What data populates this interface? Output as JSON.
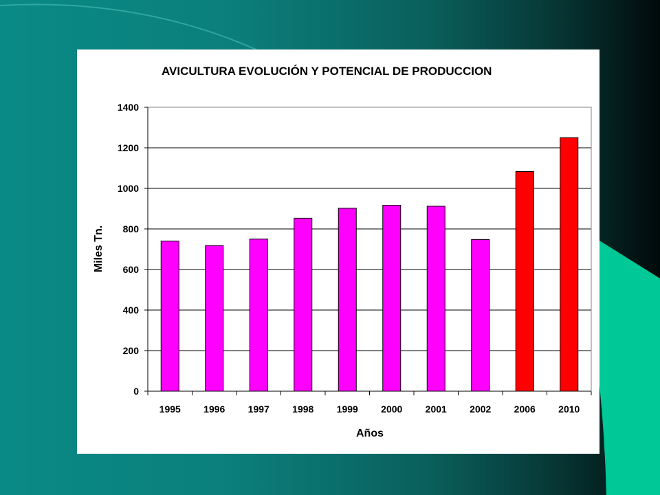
{
  "colors": {
    "bar_actual": "#ff00ff",
    "bar_projected": "#ff0000",
    "accent_shape": "#00c896",
    "background_dark": "#010a0a",
    "background_teal": "#0a8a86"
  },
  "chart_data": {
    "type": "bar",
    "title": "AVICULTURA EVOLUCIÓN Y POTENCIAL DE PRODUCCION",
    "xlabel": "Años",
    "ylabel": "Miles Tn.",
    "categories": [
      "1995",
      "1996",
      "1997",
      "1998",
      "1999",
      "2000",
      "2001",
      "2002",
      "2006",
      "2010"
    ],
    "values": [
      740,
      718,
      750,
      853,
      902,
      917,
      912,
      748,
      1083,
      1250
    ],
    "bar_colors": [
      "#ff00ff",
      "#ff00ff",
      "#ff00ff",
      "#ff00ff",
      "#ff00ff",
      "#ff00ff",
      "#ff00ff",
      "#ff00ff",
      "#ff0000",
      "#ff0000"
    ],
    "ylim": [
      0,
      1400
    ],
    "yticks": [
      0,
      200,
      400,
      600,
      800,
      1000,
      1200,
      1400
    ],
    "grid": true,
    "legend": "none"
  }
}
